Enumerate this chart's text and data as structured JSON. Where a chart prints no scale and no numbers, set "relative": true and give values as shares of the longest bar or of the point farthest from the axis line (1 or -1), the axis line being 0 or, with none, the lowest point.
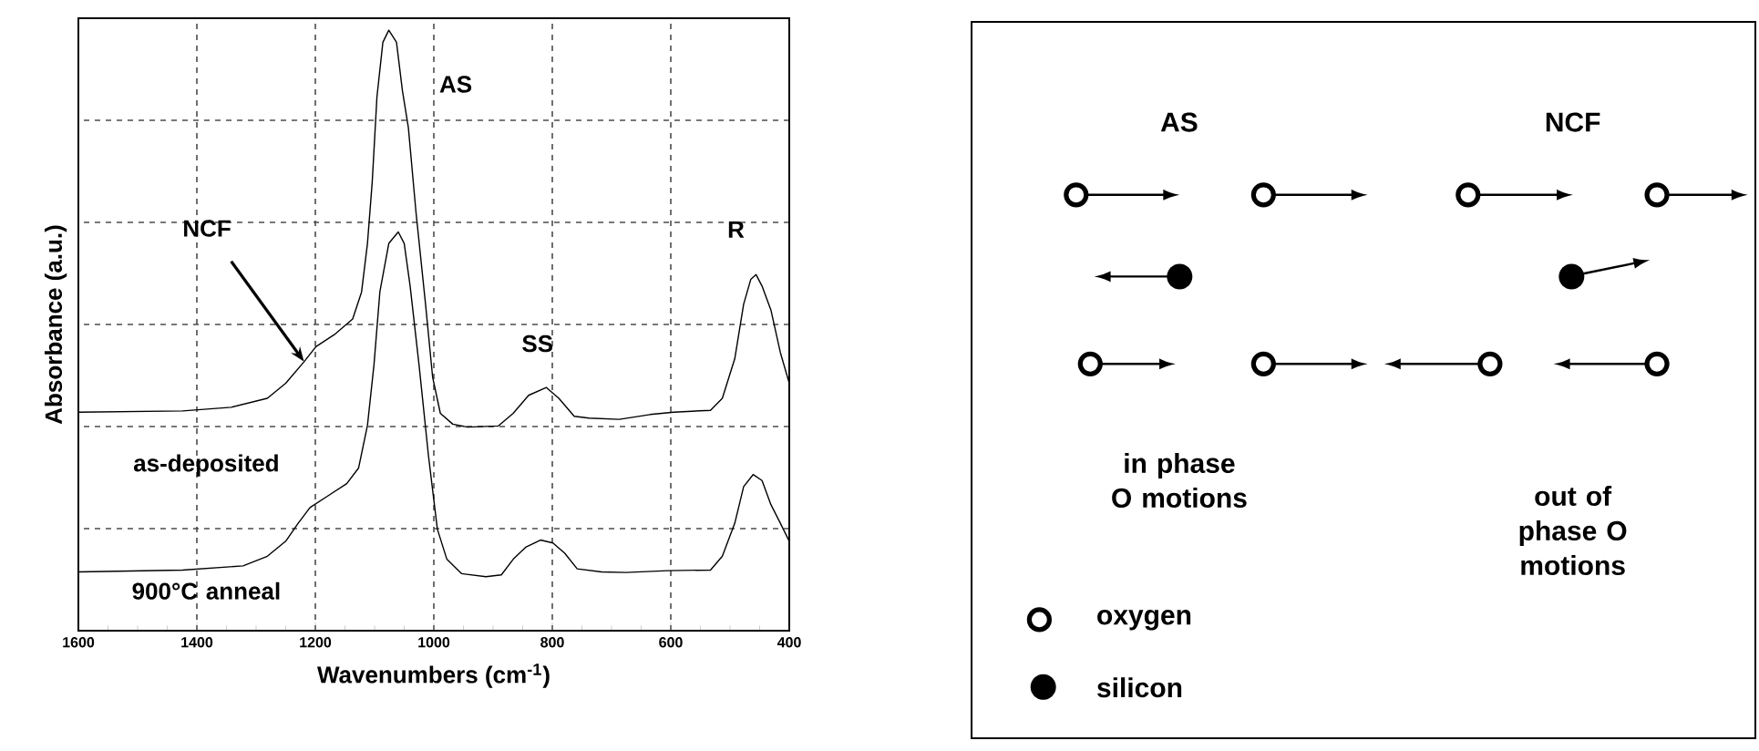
{
  "chart_data": [
    {
      "type": "line",
      "relative": true,
      "xlabel": "Wavenumbers (cm$^{-1}$)",
      "ylabel": "Absorbance (a.u.)",
      "xlim": [
        1600,
        400
      ],
      "xticks": [
        1600,
        1400,
        1200,
        1000,
        800,
        600,
        400
      ],
      "grid": true,
      "tick_labels": "x",
      "line_style": "solid",
      "series": [
        {
          "name": "as-deposited",
          "color": "#000000",
          "x": [
            1600,
            1424,
            1342,
            1281,
            1250,
            1219,
            1199,
            1168,
            1137,
            1122,
            1112,
            1104,
            1096,
            1086,
            1076,
            1063,
            1053,
            1043,
            1030,
            1014,
            1002,
            989,
            968,
            943,
            891,
            866,
            840,
            810,
            789,
            763,
            738,
            687,
            635,
            595,
            533,
            513,
            492,
            477,
            465,
            456,
            446,
            431,
            415,
            400
          ],
          "values": [
            0.364,
            0.366,
            0.372,
            0.387,
            0.412,
            0.448,
            0.473,
            0.493,
            0.519,
            0.564,
            0.645,
            0.747,
            0.889,
            0.98,
            1.0,
            0.98,
            0.899,
            0.838,
            0.696,
            0.544,
            0.422,
            0.362,
            0.344,
            0.339,
            0.341,
            0.362,
            0.392,
            0.405,
            0.387,
            0.357,
            0.354,
            0.352,
            0.36,
            0.364,
            0.367,
            0.387,
            0.453,
            0.544,
            0.585,
            0.593,
            0.574,
            0.534,
            0.463,
            0.412
          ]
        },
        {
          "name": "900°C anneal",
          "color": "#000000",
          "x": [
            1600,
            1424,
            1322,
            1281,
            1250,
            1229,
            1209,
            1178,
            1147,
            1127,
            1112,
            1101,
            1091,
            1076,
            1060,
            1050,
            1040,
            1025,
            1009,
            994,
            978,
            953,
            912,
            886,
            866,
            845,
            820,
            799,
            779,
            758,
            717,
            676,
            605,
            533,
            513,
            492,
            477,
            461,
            446,
            431,
            415,
            400
          ],
          "values": [
            0.098,
            0.101,
            0.108,
            0.124,
            0.149,
            0.179,
            0.205,
            0.225,
            0.245,
            0.271,
            0.342,
            0.443,
            0.565,
            0.645,
            0.664,
            0.645,
            0.574,
            0.443,
            0.291,
            0.169,
            0.119,
            0.095,
            0.09,
            0.093,
            0.119,
            0.139,
            0.151,
            0.146,
            0.129,
            0.103,
            0.098,
            0.097,
            0.1,
            0.101,
            0.124,
            0.179,
            0.24,
            0.26,
            0.25,
            0.21,
            0.179,
            0.149
          ]
        }
      ],
      "annotations": [
        {
          "text": "AS",
          "x": 1076,
          "y": 1.0
        },
        {
          "text": "NCF",
          "x": 1219,
          "y": 0.448
        },
        {
          "text": "SS",
          "x": 810,
          "y": 0.405
        },
        {
          "text": "R",
          "x": 456,
          "y": 0.593
        }
      ]
    },
    {
      "type": "other",
      "annotations": [
        "AS",
        "NCF",
        "in phase O motions",
        "out of phase O motions",
        "oxygen",
        "silicon"
      ]
    }
  ]
}
